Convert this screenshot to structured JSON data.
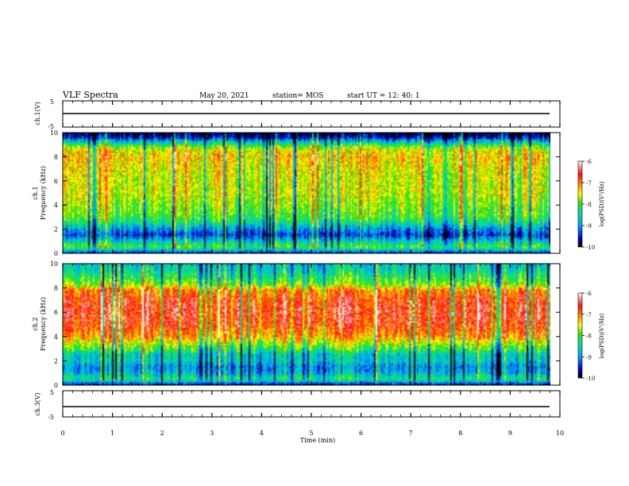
{
  "header": {
    "title": "VLF Spectra",
    "date": "May 20, 2021",
    "station": "station= MOS",
    "start": "start  UT =  12: 40: 1"
  },
  "chart_data": [
    {
      "type": "line",
      "panel": "ch1-voltage",
      "ylabel": "ch.1(V)",
      "ylim": [
        -5,
        5
      ],
      "yticks": [
        "5",
        "-5"
      ],
      "x": [
        0,
        10
      ],
      "values": [
        -1.3,
        -1.3
      ]
    },
    {
      "type": "heatmap",
      "panel": "ch1-spectrogram",
      "ylabel": "ch.1\nFrequency (kHz)",
      "ylabel_lines": [
        "ch.1",
        "Frequency (kHz)"
      ],
      "ylim": [
        0,
        10
      ],
      "yticks": [
        "0",
        "2",
        "4",
        "6",
        "8",
        "10"
      ],
      "xlim": [
        0,
        9.85
      ],
      "colorbar": {
        "label": "log(PSD)(V²/Hz)",
        "ticks": [
          "-6",
          "-7",
          "-8",
          "-9",
          "-10"
        ],
        "range": [
          -10,
          -6
        ]
      },
      "profile_khz": [
        0,
        0.5,
        1,
        1.5,
        2,
        2.5,
        3,
        4,
        5,
        6,
        7,
        8,
        8.7,
        9.2,
        9.6,
        10
      ],
      "profile_level": [
        -9.5,
        -8.0,
        -8.6,
        -9.4,
        -9.0,
        -8.4,
        -8.0,
        -7.8,
        -7.6,
        -7.6,
        -7.5,
        -7.3,
        -7.6,
        -8.6,
        -9.6,
        -9.9
      ]
    },
    {
      "type": "heatmap",
      "panel": "ch2-spectrogram",
      "ylabel": "ch.2\nFrequency (kHz)",
      "ylabel_lines": [
        "ch.2",
        "Frequency (kHz)"
      ],
      "ylim": [
        0,
        10
      ],
      "yticks": [
        "0",
        "2",
        "4",
        "6",
        "8",
        "10"
      ],
      "xlim": [
        0,
        9.85
      ],
      "colorbar": {
        "label": "log(PSD)(V²/Hz)",
        "ticks": [
          "-6",
          "-7",
          "-8",
          "-9",
          "-10"
        ],
        "range": [
          -10,
          -6
        ]
      },
      "profile_khz": [
        0,
        0.5,
        1,
        1.5,
        2,
        2.5,
        3,
        3.5,
        4,
        5,
        6,
        7,
        7.8,
        8.3,
        9,
        9.5,
        10
      ],
      "profile_level": [
        -9.6,
        -8.2,
        -8.8,
        -9.0,
        -8.6,
        -8.6,
        -8.0,
        -7.6,
        -7.1,
        -6.7,
        -6.6,
        -6.7,
        -7.0,
        -7.8,
        -8.2,
        -8.5,
        -8.6
      ]
    },
    {
      "type": "line",
      "panel": "ch3-voltage",
      "ylabel": "ch.3(V)",
      "ylim": [
        -5,
        5
      ],
      "yticks": [
        "5",
        "-5"
      ],
      "x": [
        0,
        10
      ],
      "values": [
        -1.3,
        -1.3
      ]
    }
  ],
  "xaxis": {
    "label": "Time  (min)",
    "ticks": [
      "0",
      "1",
      "2",
      "3",
      "4",
      "5",
      "6",
      "7",
      "8",
      "9",
      "10"
    ],
    "xlim": [
      0,
      10
    ]
  }
}
